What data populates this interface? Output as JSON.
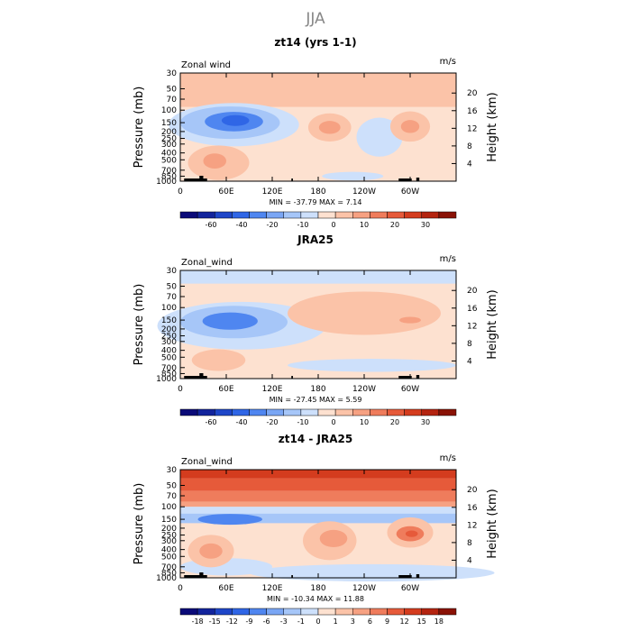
{
  "figure_title": "JJA",
  "chart_data": [
    {
      "type": "contour",
      "title": "zt14 (yrs 1-1)",
      "variable": "Zonal wind",
      "units": "m/s",
      "ylabel": "Pressure (mb)",
      "ylabel_right": "Height (km)",
      "pressure_ticks": [
        "30",
        "50",
        "70",
        "100",
        "150",
        "200",
        "250",
        "300",
        "400",
        "500",
        "700",
        "850",
        "1000"
      ],
      "height_ticks": [
        "4",
        "8",
        "12",
        "16",
        "20"
      ],
      "lon_ticks": [
        "0",
        "60E",
        "120E",
        "180",
        "120W",
        "60W"
      ],
      "stats": "MIN = -37.79   MAX =   7.14",
      "min": -37.79,
      "max": 7.14,
      "colorbar_levels": [
        "-60",
        "-40",
        "-20",
        "-10",
        "0",
        "10",
        "20",
        "30"
      ],
      "colorbar_colors": [
        "#0a0a78",
        "#12249c",
        "#1e46c8",
        "#2f66e6",
        "#4f86f0",
        "#7aa6f4",
        "#a6c6f8",
        "#cde0fb",
        "#fde1d0",
        "#fbc3a8",
        "#f6a182",
        "#ef7c5c",
        "#e65a3a",
        "#d43c1e",
        "#b42410",
        "#8a1206"
      ]
    },
    {
      "type": "contour",
      "title": "JRA25",
      "variable": "Zonal_wind",
      "units": "m/s",
      "ylabel": "Pressure (mb)",
      "ylabel_right": "Height (km)",
      "pressure_ticks": [
        "30",
        "50",
        "70",
        "100",
        "150",
        "200",
        "250",
        "300",
        "400",
        "500",
        "700",
        "850",
        "1000"
      ],
      "height_ticks": [
        "4",
        "8",
        "12",
        "16",
        "20"
      ],
      "lon_ticks": [
        "0",
        "60E",
        "120E",
        "180",
        "120W",
        "60W"
      ],
      "stats": "MIN = -27.45   MAX =   5.59",
      "min": -27.45,
      "max": 5.59,
      "colorbar_levels": [
        "-60",
        "-40",
        "-20",
        "-10",
        "0",
        "10",
        "20",
        "30"
      ],
      "colorbar_colors": [
        "#0a0a78",
        "#12249c",
        "#1e46c8",
        "#2f66e6",
        "#4f86f0",
        "#7aa6f4",
        "#a6c6f8",
        "#cde0fb",
        "#fde1d0",
        "#fbc3a8",
        "#f6a182",
        "#ef7c5c",
        "#e65a3a",
        "#d43c1e",
        "#b42410",
        "#8a1206"
      ]
    },
    {
      "type": "contour",
      "title": "zt14 - JRA25",
      "variable": "Zonal_wind",
      "units": "m/s",
      "ylabel": "Pressure (mb)",
      "ylabel_right": "Height (km)",
      "pressure_ticks": [
        "30",
        "50",
        "70",
        "100",
        "150",
        "200",
        "250",
        "300",
        "400",
        "500",
        "700",
        "850",
        "1000"
      ],
      "height_ticks": [
        "4",
        "8",
        "12",
        "16",
        "20"
      ],
      "lon_ticks": [
        "0",
        "60E",
        "120E",
        "180",
        "120W",
        "60W"
      ],
      "stats": "MIN = -10.34   MAX =  11.88",
      "min": -10.34,
      "max": 11.88,
      "colorbar_levels": [
        "-18",
        "-15",
        "-12",
        "-9",
        "-6",
        "-3",
        "-1",
        "0",
        "1",
        "3",
        "6",
        "9",
        "12",
        "15",
        "18"
      ],
      "colorbar_colors": [
        "#0a0a78",
        "#12249c",
        "#1e46c8",
        "#2f66e6",
        "#4f86f0",
        "#7aa6f4",
        "#a6c6f8",
        "#cde0fb",
        "#fde1d0",
        "#fbc3a8",
        "#f6a182",
        "#ef7c5c",
        "#e65a3a",
        "#d43c1e",
        "#b42410",
        "#8a1206"
      ]
    }
  ],
  "colors": {
    "background_field": "#fde1d0",
    "light_negative": "#cde0fb",
    "medium_negative": "#a6c6f8",
    "strong_negative": "#4f86f0",
    "light_positive": "#fbc3a8",
    "medium_positive": "#f6a182",
    "strong_positive": "#ef7c5c",
    "extreme_positive": "#e65a3a",
    "extreme_negative": "#2f66e6",
    "very_strong_positive": "#d43c1e",
    "topography": "#000000"
  }
}
